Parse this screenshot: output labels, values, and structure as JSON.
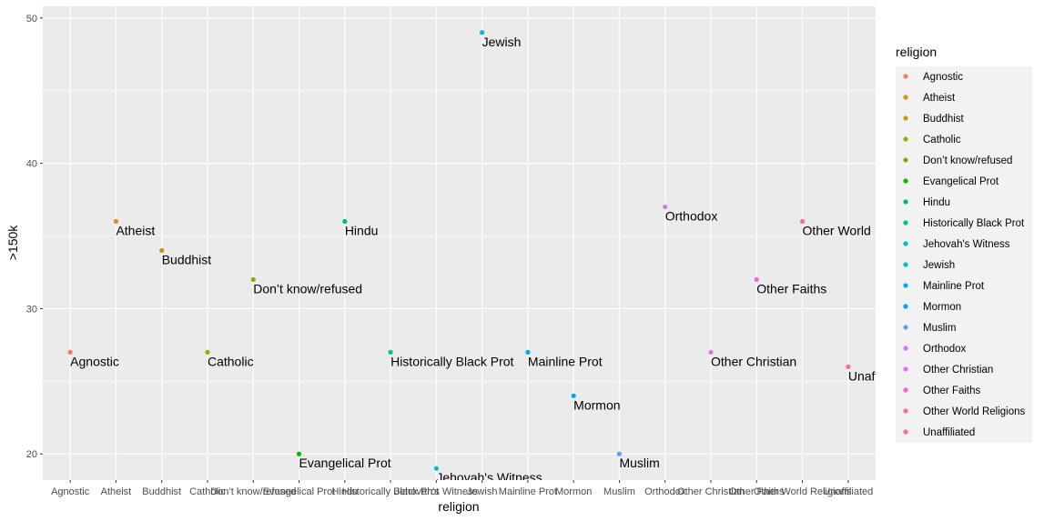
{
  "chart_data": {
    "type": "scatter",
    "xlabel": "religion",
    "ylabel": ">150k",
    "ylim": [
      18.2,
      50.8
    ],
    "yticks": [
      20,
      30,
      40,
      50
    ],
    "grid": true,
    "legend": {
      "title": "religion",
      "placement": "right"
    },
    "categories": [
      "Agnostic",
      "Atheist",
      "Buddhist",
      "Catholic",
      "Don’t know/refused",
      "Evangelical Prot",
      "Hindu",
      "Historically Black Prot",
      "Jehovah's Witness",
      "Jewish",
      "Mainline Prot",
      "Mormon",
      "Muslim",
      "Orthodox",
      "Other Christian",
      "Other Faiths",
      "Other World Religions",
      "Unaffiliated"
    ],
    "values": [
      27,
      36,
      34,
      27,
      32,
      20,
      36,
      27,
      19,
      49,
      27,
      24,
      20,
      37,
      27,
      32,
      36,
      26
    ],
    "point_labels": [
      "Agnostic",
      "Atheist",
      "Buddhist",
      "Catholic",
      "Don’t know/refused",
      "Evangelical Prot",
      "Hindu",
      "Historically Black Prot",
      "Jehovah's Witness",
      "Jewish",
      "Mainline Prot",
      "Mormon",
      "Muslim",
      "Orthodox",
      "Other Christian",
      "Other Faiths",
      "Other World",
      "Unaf"
    ],
    "colors": [
      "#F8766D",
      "#E68613",
      "#CD9600",
      "#ABA300",
      "#7CAE00",
      "#0CB702",
      "#00BE67",
      "#00C19A",
      "#00BFC4",
      "#00B8E7",
      "#00A9FF",
      "#00A5FF",
      "#619CFF",
      "#C77CFF",
      "#E76BF3",
      "#FF61CC",
      "#FF68A1",
      "#FF6C91"
    ]
  }
}
